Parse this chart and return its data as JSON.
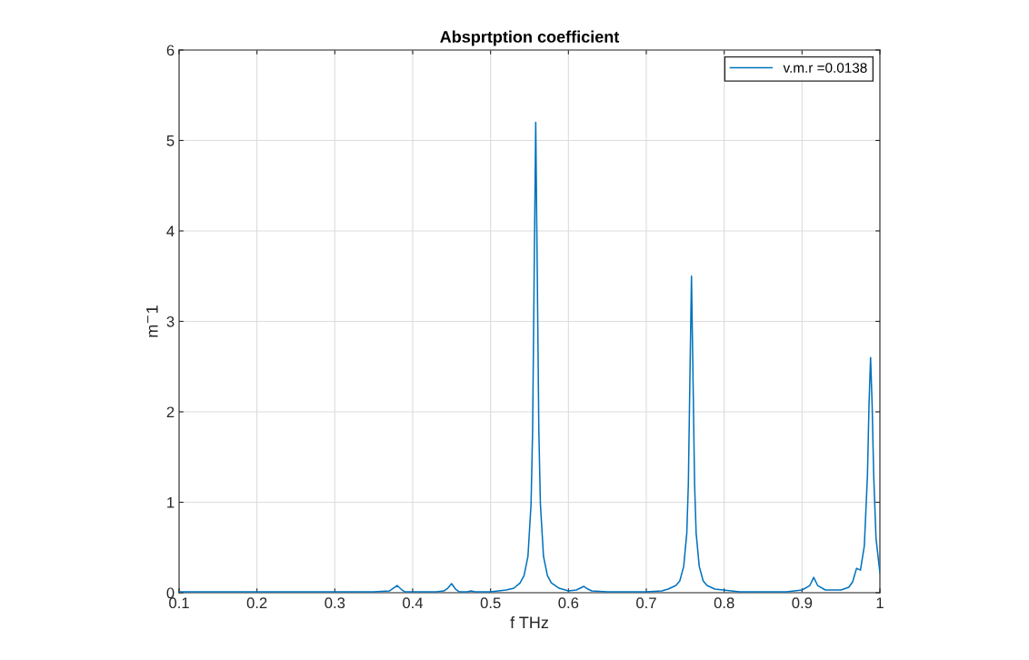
{
  "chart_data": {
    "type": "line",
    "title": "Absprtption coefficient",
    "xlabel": "f THz",
    "ylabel": "m$^{−}$1",
    "xlim": [
      0.1,
      1
    ],
    "ylim": [
      0,
      6
    ],
    "xticks": [
      0.1,
      0.2,
      0.3,
      0.4,
      0.5,
      0.6,
      0.7,
      0.8,
      0.9,
      1
    ],
    "yticks": [
      0,
      1,
      2,
      3,
      4,
      5,
      6
    ],
    "grid": true,
    "legend": "top right",
    "series": [
      {
        "name": "v.m.r =0.0138",
        "color": "#0072bd",
        "x": [
          0.1,
          0.2,
          0.3,
          0.35,
          0.37,
          0.375,
          0.38,
          0.385,
          0.39,
          0.43,
          0.44,
          0.445,
          0.45,
          0.455,
          0.46,
          0.47,
          0.475,
          0.48,
          0.5,
          0.51,
          0.52,
          0.53,
          0.538,
          0.543,
          0.548,
          0.552,
          0.554,
          0.556,
          0.558,
          0.56,
          0.562,
          0.564,
          0.568,
          0.573,
          0.578,
          0.588,
          0.6,
          0.61,
          0.615,
          0.62,
          0.625,
          0.63,
          0.65,
          0.7,
          0.72,
          0.728,
          0.738,
          0.743,
          0.748,
          0.752,
          0.754,
          0.756,
          0.758,
          0.76,
          0.762,
          0.764,
          0.768,
          0.773,
          0.778,
          0.788,
          0.82,
          0.88,
          0.9,
          0.91,
          0.915,
          0.92,
          0.93,
          0.95,
          0.96,
          0.965,
          0.97,
          0.975,
          0.98,
          0.984,
          0.986,
          0.988,
          0.99,
          0.992,
          0.995,
          1
        ],
        "values": [
          0.01,
          0.01,
          0.01,
          0.01,
          0.02,
          0.05,
          0.08,
          0.04,
          0.01,
          0.01,
          0.02,
          0.05,
          0.1,
          0.04,
          0.01,
          0.01,
          0.02,
          0.01,
          0.01,
          0.02,
          0.03,
          0.05,
          0.11,
          0.19,
          0.4,
          0.98,
          1.79,
          3.52,
          5.2,
          3.52,
          1.79,
          0.98,
          0.4,
          0.19,
          0.11,
          0.05,
          0.02,
          0.03,
          0.05,
          0.07,
          0.04,
          0.02,
          0.01,
          0.01,
          0.02,
          0.04,
          0.08,
          0.13,
          0.29,
          0.66,
          1.2,
          2.37,
          3.5,
          2.37,
          1.2,
          0.66,
          0.29,
          0.13,
          0.08,
          0.04,
          0.01,
          0.01,
          0.03,
          0.08,
          0.17,
          0.08,
          0.03,
          0.03,
          0.06,
          0.12,
          0.27,
          0.25,
          0.52,
          1.3,
          2.08,
          2.6,
          2.08,
          1.3,
          0.6,
          0.22
        ]
      }
    ]
  }
}
